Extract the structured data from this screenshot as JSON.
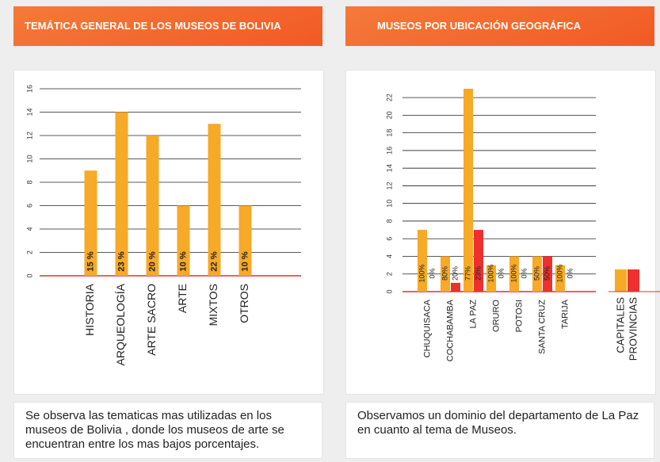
{
  "chart_data": [
    {
      "type": "bar",
      "title": "TEMÁTICA GENERAL DE LOS MUSEOS DE BOLIVIA",
      "categories": [
        "HISTORIA",
        "ARQUEOLOGÍA",
        "ARTE SACRO",
        "ARTE",
        "MIXTOS",
        "OTROS"
      ],
      "series": [
        {
          "name": null,
          "color": "#f7a928",
          "values": [
            9,
            14,
            12,
            6,
            13,
            6
          ]
        }
      ],
      "annotations": [
        "15 %",
        "23 %",
        "20 %",
        "10 %",
        "22 %",
        "10 %"
      ],
      "ylim": [
        0,
        16
      ],
      "yticks": [
        0,
        2,
        4,
        6,
        8,
        10,
        12,
        14,
        16
      ],
      "grid": true,
      "caption": "Se observa las tematicas mas  utilizadas  en  los museos de Bolivia , donde los museos de arte se encuentran entre los mas bajos  porcentajes."
    },
    {
      "type": "bar",
      "title": "MUSEOS  POR  UBICACIÓN GEOGRÁFICA",
      "categories": [
        "CHUQUISACA",
        "COCHABAMBA",
        "LA PAZ",
        "ORURO",
        "POTOSI",
        "SANTA CRUZ",
        "TARIJA"
      ],
      "series": [
        {
          "name": "CAPITALES",
          "color": "#f7a928",
          "values": [
            7,
            4,
            23,
            3,
            4,
            4,
            3
          ],
          "annotations": [
            "100%",
            "80%",
            "77%",
            "100%",
            "100%",
            "50%",
            "100%"
          ]
        },
        {
          "name": "PROVINCIAS",
          "color": "#ee3030",
          "values": [
            0,
            1,
            7,
            0,
            0,
            4,
            0
          ],
          "annotations": [
            "0%",
            "20%",
            "23%",
            "0%",
            "0%",
            "50%",
            "0%"
          ]
        }
      ],
      "ylim": [
        0,
        23
      ],
      "yticks": [
        0,
        2,
        4,
        6,
        8,
        10,
        12,
        14,
        16,
        18,
        20,
        22
      ],
      "grid": true,
      "legend": "right",
      "caption": "Observamos un dominio del departamento de La Paz en cuanto al tema de Museos."
    }
  ]
}
